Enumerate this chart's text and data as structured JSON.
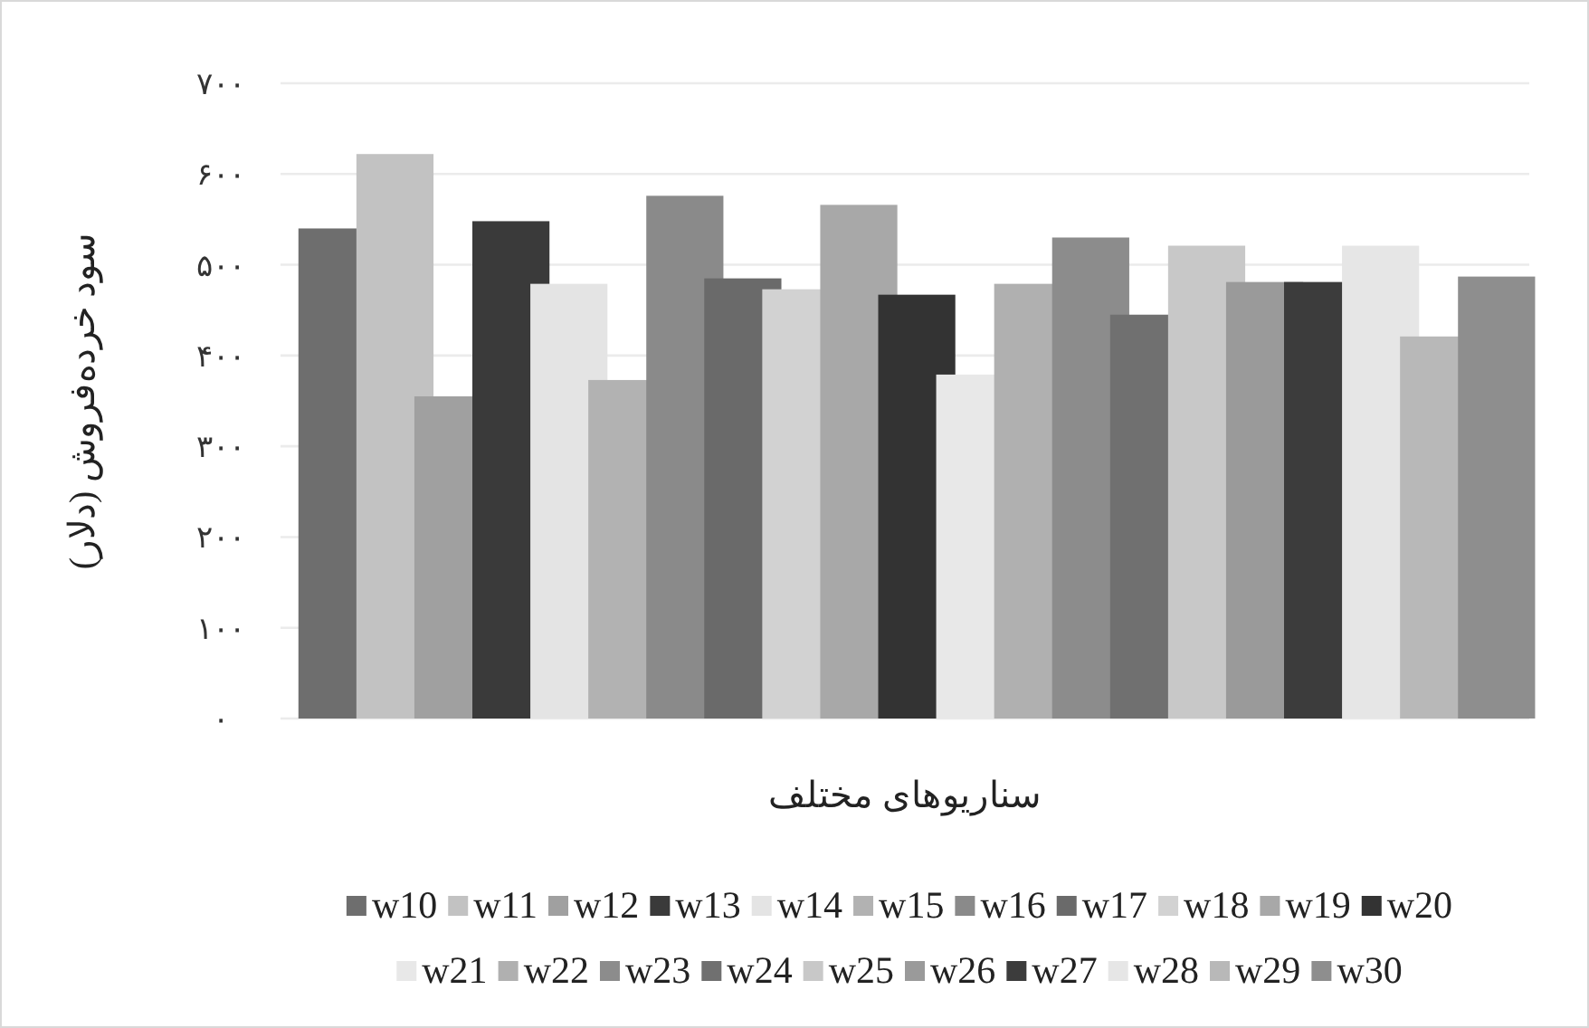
{
  "chart_data": {
    "type": "bar",
    "xlabel": "سناریوهای مختلف",
    "ylabel": "سود خرده‌فروش (دلار)",
    "categories": [
      null
    ],
    "series": [
      {
        "name": "w10",
        "color": "#6e6e6e",
        "values": [
          540
        ]
      },
      {
        "name": "w11",
        "color": "#c2c2c2",
        "values": [
          622
        ]
      },
      {
        "name": "w12",
        "color": "#a0a0a0",
        "values": [
          355
        ]
      },
      {
        "name": "w13",
        "color": "#3a3a3a",
        "values": [
          548
        ]
      },
      {
        "name": "w14",
        "color": "#e4e4e4",
        "values": [
          479
        ]
      },
      {
        "name": "w15",
        "color": "#b2b2b2",
        "values": [
          373
        ]
      },
      {
        "name": "w16",
        "color": "#8a8a8a",
        "values": [
          576
        ]
      },
      {
        "name": "w17",
        "color": "#6a6a6a",
        "values": [
          485
        ]
      },
      {
        "name": "w18",
        "color": "#d2d2d2",
        "values": [
          473
        ]
      },
      {
        "name": "w19",
        "color": "#a8a8a8",
        "values": [
          566
        ]
      },
      {
        "name": "w20",
        "color": "#333333",
        "values": [
          467
        ]
      },
      {
        "name": "w21",
        "color": "#e8e8e8",
        "values": [
          379
        ]
      },
      {
        "name": "w22",
        "color": "#b0b0b0",
        "values": [
          479
        ]
      },
      {
        "name": "w23",
        "color": "#8c8c8c",
        "values": [
          530
        ]
      },
      {
        "name": "w24",
        "color": "#707070",
        "values": [
          445
        ]
      },
      {
        "name": "w25",
        "color": "#c8c8c8",
        "values": [
          521
        ]
      },
      {
        "name": "w26",
        "color": "#9a9a9a",
        "values": [
          481
        ]
      },
      {
        "name": "w27",
        "color": "#3c3c3c",
        "values": [
          481
        ]
      },
      {
        "name": "w28",
        "color": "#e6e6e6",
        "values": [
          521
        ]
      },
      {
        "name": "w29",
        "color": "#b8b8b8",
        "values": [
          421
        ]
      },
      {
        "name": "w30",
        "color": "#8e8e8e",
        "values": [
          487
        ]
      }
    ],
    "ylim": [
      0,
      700
    ],
    "yticks": [
      {
        "value": 0,
        "label": "۰"
      },
      {
        "value": 100,
        "label": "۱۰۰"
      },
      {
        "value": 200,
        "label": "۲۰۰"
      },
      {
        "value": 300,
        "label": "۳۰۰"
      },
      {
        "value": 400,
        "label": "۴۰۰"
      },
      {
        "value": 500,
        "label": "۵۰۰"
      },
      {
        "value": 600,
        "label": "۶۰۰"
      },
      {
        "value": 700,
        "label": "۷۰۰"
      }
    ],
    "grid": "y",
    "legend": "bottom"
  }
}
